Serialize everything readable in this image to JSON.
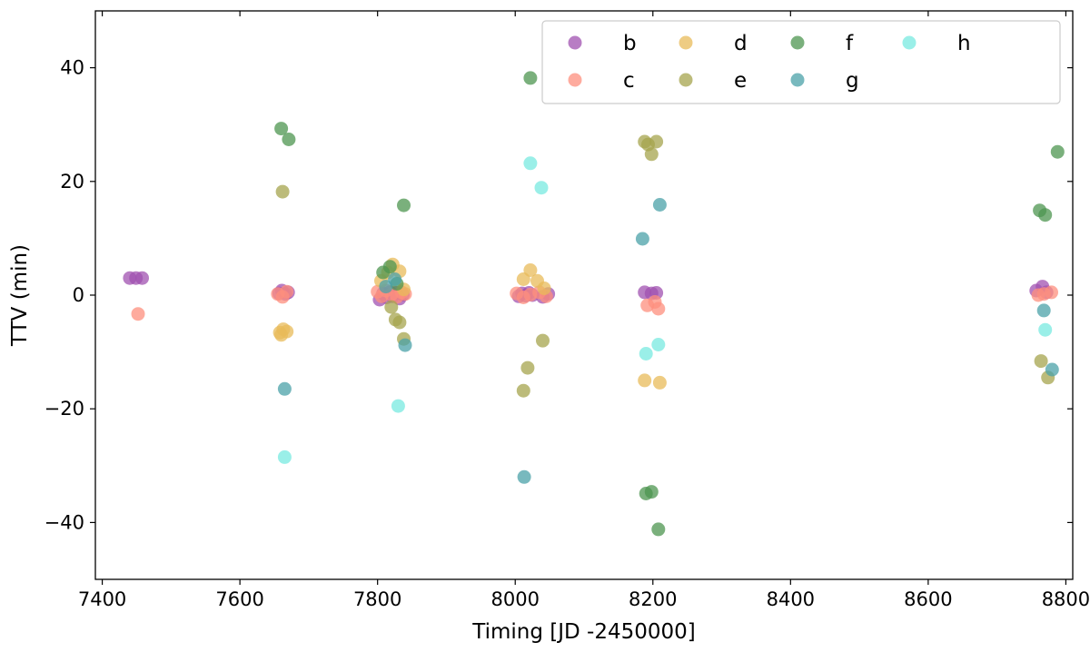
{
  "chart_data": {
    "type": "scatter",
    "title": "",
    "xlabel": "Timing [JD -2450000]",
    "ylabel": "TTV (min)",
    "xlim": [
      7390,
      8810
    ],
    "ylim": [
      -50,
      50
    ],
    "xticks": [
      7400,
      7600,
      7800,
      8000,
      8200,
      8400,
      8600,
      8800
    ],
    "yticks": [
      -40,
      -20,
      0,
      20,
      40
    ],
    "ytick_labels": [
      "−40",
      "−20",
      "0",
      "20",
      "40"
    ],
    "grid": false,
    "legend_position": "upper-right",
    "legend_order": [
      "b",
      "d",
      "f",
      "h",
      "c",
      "e",
      "g"
    ],
    "series": [
      {
        "name": "b",
        "color": "#a052b0",
        "points": [
          [
            7440,
            3.0
          ],
          [
            7449,
            3.0
          ],
          [
            7458,
            3.0
          ],
          [
            7657,
            0.3
          ],
          [
            7661,
            0.8
          ],
          [
            7666,
            0.2
          ],
          [
            7670,
            0.5
          ],
          [
            7803,
            -0.8
          ],
          [
            7808,
            0.3
          ],
          [
            7813,
            -0.4
          ],
          [
            7818,
            0.5
          ],
          [
            7822,
            -0.2
          ],
          [
            7827,
            0.4
          ],
          [
            7832,
            -0.6
          ],
          [
            7837,
            0.1
          ],
          [
            8005,
            -0.2
          ],
          [
            8010,
            0.3
          ],
          [
            8015,
            -0.1
          ],
          [
            8020,
            0.4
          ],
          [
            8025,
            0.0
          ],
          [
            8040,
            -0.3
          ],
          [
            8048,
            0.2
          ],
          [
            8188,
            0.5
          ],
          [
            8198,
            0.3
          ],
          [
            8205,
            0.4
          ],
          [
            8757,
            0.8
          ],
          [
            8766,
            1.5
          ],
          [
            8772,
            0.5
          ]
        ]
      },
      {
        "name": "c",
        "color": "#fe8f7e",
        "points": [
          [
            7452,
            -3.3
          ],
          [
            7655,
            0.2
          ],
          [
            7662,
            -0.3
          ],
          [
            7668,
            0.6
          ],
          [
            7800,
            0.6
          ],
          [
            7806,
            -0.2
          ],
          [
            7812,
            0.8
          ],
          [
            7820,
            0.1
          ],
          [
            7828,
            -0.3
          ],
          [
            7835,
            0.5
          ],
          [
            7840,
            0.2
          ],
          [
            8002,
            0.3
          ],
          [
            8012,
            -0.4
          ],
          [
            8022,
            0.1
          ],
          [
            8035,
            0.5
          ],
          [
            8045,
            -0.2
          ],
          [
            8192,
            -1.8
          ],
          [
            8203,
            -1.2
          ],
          [
            8208,
            -2.4
          ],
          [
            8760,
            0.0
          ],
          [
            8768,
            0.2
          ],
          [
            8779,
            0.5
          ]
        ]
      },
      {
        "name": "d",
        "color": "#e8bb5a",
        "points": [
          [
            7658,
            -6.6
          ],
          [
            7663,
            -6.0
          ],
          [
            7668,
            -6.4
          ],
          [
            7660,
            -7.0
          ],
          [
            7805,
            2.5
          ],
          [
            7815,
            4.0
          ],
          [
            7822,
            5.4
          ],
          [
            7832,
            4.2
          ],
          [
            7838,
            1.0
          ],
          [
            8012,
            2.8
          ],
          [
            8022,
            4.4
          ],
          [
            8032,
            2.5
          ],
          [
            8042,
            1.2
          ],
          [
            8188,
            -15.0
          ],
          [
            8210,
            -15.4
          ]
        ]
      },
      {
        "name": "e",
        "color": "#a6a44e",
        "points": [
          [
            7662,
            18.2
          ],
          [
            7820,
            -2.1
          ],
          [
            7826,
            -4.3
          ],
          [
            7832,
            -4.8
          ],
          [
            7838,
            -7.7
          ],
          [
            8012,
            -16.8
          ],
          [
            8018,
            -12.8
          ],
          [
            8040,
            -8.0
          ],
          [
            8188,
            27.0
          ],
          [
            8193,
            26.5
          ],
          [
            8198,
            24.8
          ],
          [
            8205,
            27.0
          ],
          [
            8764,
            -11.6
          ],
          [
            8774,
            -14.5
          ]
        ]
      },
      {
        "name": "f",
        "color": "#4d9550",
        "points": [
          [
            7660,
            29.3
          ],
          [
            7671,
            27.4
          ],
          [
            7808,
            4.0
          ],
          [
            7818,
            5.0
          ],
          [
            7828,
            2.0
          ],
          [
            7838,
            15.8
          ],
          [
            8022,
            38.2
          ],
          [
            8190,
            -34.9
          ],
          [
            8198,
            -34.6
          ],
          [
            8208,
            -41.2
          ],
          [
            8762,
            14.9
          ],
          [
            8770,
            14.1
          ],
          [
            8788,
            25.2
          ]
        ]
      },
      {
        "name": "g",
        "color": "#4ba2a8",
        "points": [
          [
            7665,
            -16.5
          ],
          [
            7812,
            1.5
          ],
          [
            7825,
            2.8
          ],
          [
            7840,
            -8.8
          ],
          [
            8013,
            -32.0
          ],
          [
            8185,
            9.9
          ],
          [
            8210,
            15.9
          ],
          [
            8768,
            -2.7
          ],
          [
            8780,
            -13.1
          ]
        ]
      },
      {
        "name": "h",
        "color": "#78eae0",
        "points": [
          [
            7665,
            -28.5
          ],
          [
            7830,
            -19.5
          ],
          [
            8022,
            23.2
          ],
          [
            8038,
            18.9
          ],
          [
            8190,
            -10.3
          ],
          [
            8208,
            -8.7
          ],
          [
            8770,
            -6.1
          ]
        ]
      }
    ]
  }
}
